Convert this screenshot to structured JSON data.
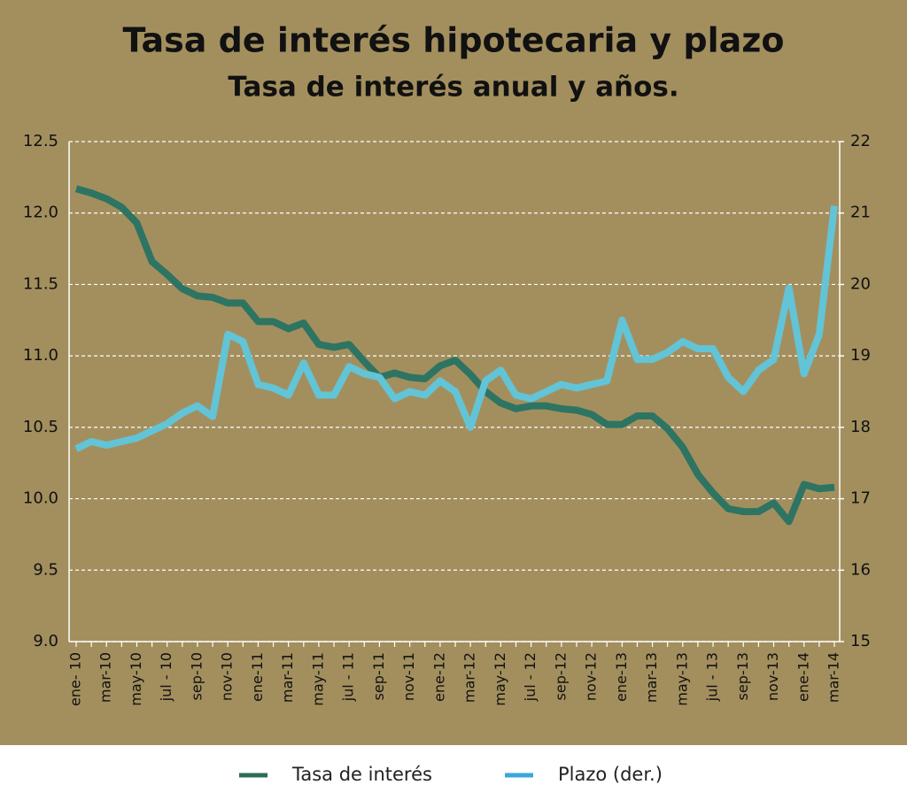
{
  "chart_data": {
    "type": "line",
    "title": "Tasa de interés hipotecaria y plazo",
    "subtitle": "Tasa de interés anual y años.",
    "categories": [
      "ene- 10",
      null,
      "mar-10",
      null,
      "may-10",
      null,
      "jul - 10",
      null,
      "sep-10",
      null,
      "nov-10",
      null,
      "ene-11",
      null,
      "mar-11",
      null,
      "may-11",
      null,
      "jul - 11",
      null,
      "sep-11",
      null,
      "nov-11",
      null,
      "ene-12",
      null,
      "mar-12",
      null,
      "may-12",
      null,
      "jul - 12",
      null,
      "sep-12",
      null,
      "nov-12",
      null,
      "ene-13",
      null,
      "mar-13",
      null,
      "may-13",
      null,
      "jul - 13",
      null,
      "sep-13",
      null,
      "nov-13",
      null,
      "ene-14",
      null,
      "mar-14"
    ],
    "series": [
      {
        "name": "Tasa de interés",
        "color": "#2d6b5a",
        "line_color": "#2e7462",
        "axis": "y",
        "values": [
          12.17,
          12.14,
          12.1,
          12.04,
          11.93,
          11.66,
          11.57,
          11.47,
          11.42,
          11.41,
          11.37,
          11.37,
          11.24,
          11.24,
          11.19,
          11.23,
          11.08,
          11.06,
          11.08,
          10.96,
          10.85,
          10.88,
          10.85,
          10.84,
          10.93,
          10.97,
          10.87,
          10.75,
          10.67,
          10.63,
          10.65,
          10.65,
          10.63,
          10.62,
          10.59,
          10.52,
          10.52,
          10.58,
          10.58,
          10.49,
          10.36,
          10.17,
          10.04,
          9.93,
          9.91,
          9.91,
          9.97,
          9.84,
          10.1,
          10.07,
          10.08
        ]
      },
      {
        "name": "Plazo (der.)",
        "color": "#3aa6dc",
        "line_color": "#62c4d6",
        "axis": "y2",
        "values": [
          17.7,
          17.8,
          17.75,
          17.8,
          17.85,
          17.95,
          18.05,
          18.2,
          18.3,
          18.15,
          19.3,
          19.2,
          18.6,
          18.55,
          18.45,
          18.9,
          18.45,
          18.45,
          18.85,
          18.75,
          18.7,
          18.4,
          18.5,
          18.45,
          18.65,
          18.5,
          18.0,
          18.65,
          18.8,
          18.45,
          18.4,
          18.5,
          18.6,
          18.55,
          18.6,
          18.65,
          19.5,
          18.95,
          18.95,
          19.05,
          19.2,
          19.1,
          19.1,
          18.7,
          18.5,
          18.8,
          18.95,
          19.95,
          18.75,
          19.3,
          21.1
        ]
      }
    ],
    "ylim": [
      9,
      12.5
    ],
    "yticks": [
      {
        "value": 9,
        "label": "9.0"
      },
      9.5,
      {
        "value": 10,
        "label": "10.0"
      },
      10.5,
      {
        "value": 11,
        "label": "11.0"
      },
      11.5,
      {
        "value": 12,
        "label": "12.0"
      },
      12.5
    ],
    "y2lim": [
      15,
      22
    ],
    "y2ticks": [
      15,
      16,
      17,
      18,
      19,
      20,
      21,
      22
    ],
    "grid": true,
    "legend": "bottom"
  }
}
